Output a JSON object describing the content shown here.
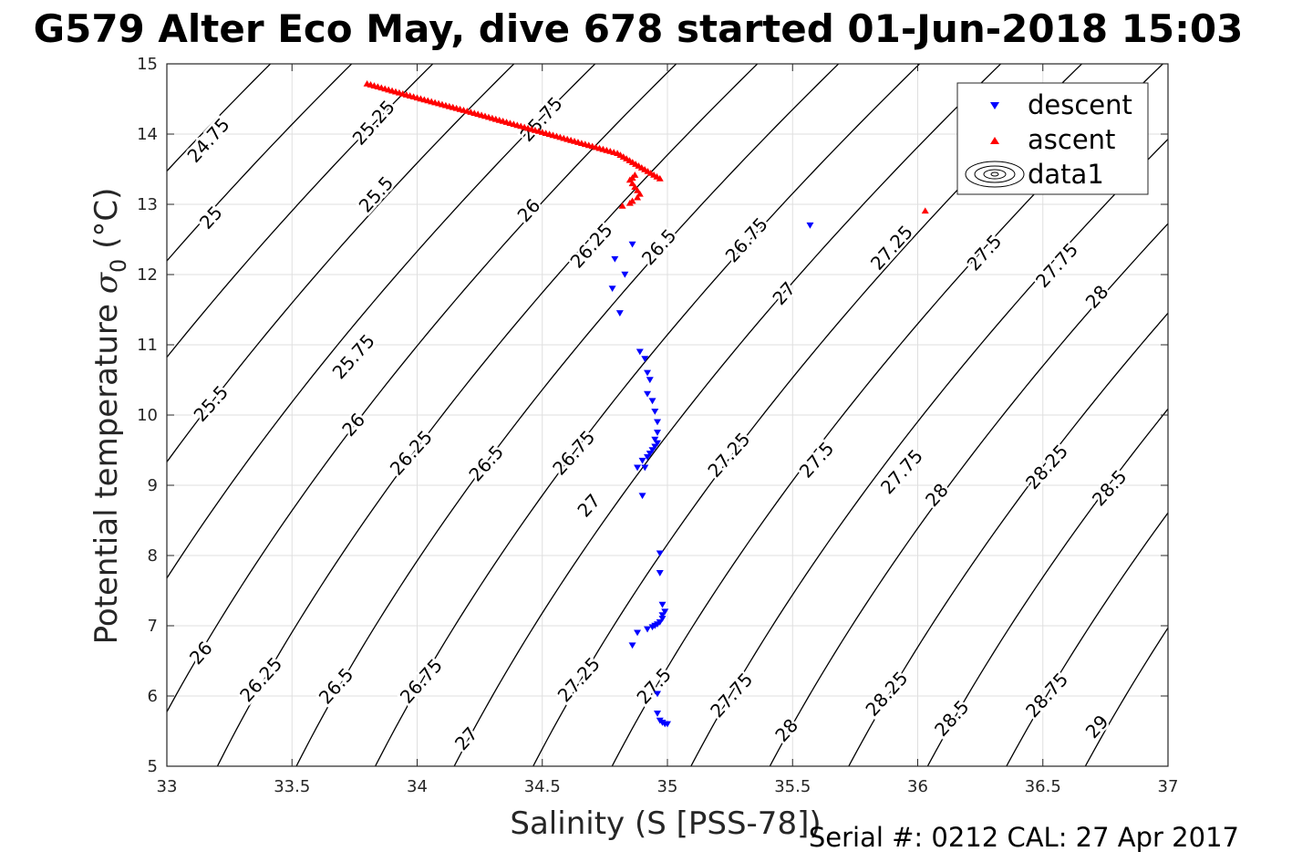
{
  "chart_data": {
    "type": "scatter",
    "title": "G579 Alter Eco May, dive 678 started 01-Jun-2018 15:03",
    "xlabel": "Salinity (S [PSS-78])",
    "ylabel": "Potential temperature σ 0 (°C)",
    "ylabel_main": "Potential temperature ",
    "ylabel_symbol": "σ",
    "ylabel_sub": "0",
    "ylabel_unit": " (°C)",
    "xlim": [
      33,
      37
    ],
    "ylim": [
      5,
      15
    ],
    "x_ticks": [
      "33",
      "33.5",
      "34",
      "34.5",
      "35",
      "35.5",
      "36",
      "36.5",
      "37"
    ],
    "y_ticks": [
      "5",
      "6",
      "7",
      "8",
      "9",
      "10",
      "11",
      "12",
      "13",
      "14",
      "15"
    ],
    "grid": true,
    "legend_position": "top-right",
    "legend": [
      {
        "label": "descent",
        "marker": "triangle-down",
        "color": "#0000ff"
      },
      {
        "label": "ascent",
        "marker": "triangle-up",
        "color": "#ff0000"
      },
      {
        "label": "data1",
        "marker": "contour",
        "color": "#000000"
      }
    ],
    "series": [
      {
        "name": "descent",
        "color": "#0000ff",
        "marker": "triangle-down",
        "x": [
          34.86,
          34.83,
          34.79,
          34.78,
          34.81,
          35.57,
          34.89,
          34.91,
          34.92,
          34.93,
          34.92,
          34.94,
          34.95,
          34.96,
          34.96,
          34.95,
          34.96,
          34.95,
          34.94,
          34.93,
          34.92,
          34.9,
          34.91,
          34.88,
          34.9,
          34.97,
          34.97,
          34.98,
          34.99,
          34.98,
          34.98,
          34.97,
          34.96,
          34.95,
          34.94,
          34.92,
          34.88,
          34.86,
          34.96,
          34.96,
          34.97,
          34.98,
          34.99,
          35.0
        ],
        "y": [
          12.43,
          12.0,
          12.22,
          11.8,
          11.45,
          12.7,
          10.9,
          10.8,
          10.6,
          10.5,
          10.3,
          10.2,
          10.05,
          9.9,
          9.75,
          9.65,
          9.6,
          9.55,
          9.5,
          9.45,
          9.4,
          9.35,
          9.25,
          9.25,
          8.85,
          8.03,
          7.75,
          7.3,
          7.2,
          7.15,
          7.1,
          7.05,
          7.02,
          7.0,
          6.98,
          6.95,
          6.9,
          6.72,
          6.03,
          5.75,
          5.65,
          5.62,
          5.6,
          5.6
        ]
      },
      {
        "name": "ascent",
        "color": "#ff0000",
        "marker": "triangle-up",
        "x": [
          33.8,
          34.0,
          34.2,
          34.4,
          34.6,
          34.8,
          34.97,
          34.87,
          34.86,
          34.85,
          34.86,
          34.87,
          34.88,
          34.89,
          34.88,
          34.86,
          34.85,
          34.82,
          36.03
        ],
        "y": [
          14.72,
          14.52,
          14.33,
          14.13,
          13.93,
          13.73,
          13.37,
          13.42,
          13.38,
          13.35,
          13.3,
          13.25,
          13.2,
          13.15,
          13.1,
          13.05,
          13.02,
          12.98,
          12.91
        ]
      }
    ],
    "contours": {
      "levels": [
        "24.75",
        "25",
        "25.25",
        "25.5",
        "25.75",
        "26",
        "26.25",
        "26.5",
        "26.75",
        "27",
        "27.25",
        "27.5",
        "27.75",
        "28",
        "28.25",
        "28.5",
        "28.75",
        "29"
      ],
      "color": "#000000",
      "labels": [
        {
          "text": "24.75",
          "x": 33.17,
          "y": 13.9
        },
        {
          "text": "25",
          "x": 33.18,
          "y": 12.8
        },
        {
          "text": "25.5",
          "x": 33.18,
          "y": 10.15
        },
        {
          "text": "26",
          "x": 33.14,
          "y": 6.6
        },
        {
          "text": "25.25",
          "x": 33.83,
          "y": 14.15
        },
        {
          "text": "25.5",
          "x": 33.84,
          "y": 13.13
        },
        {
          "text": "25.75",
          "x": 33.75,
          "y": 10.82
        },
        {
          "text": "26",
          "x": 33.75,
          "y": 9.85
        },
        {
          "text": "26.25",
          "x": 33.38,
          "y": 6.22
        },
        {
          "text": "25.75",
          "x": 34.5,
          "y": 14.2
        },
        {
          "text": "26",
          "x": 34.45,
          "y": 12.9
        },
        {
          "text": "26.25",
          "x": 34.7,
          "y": 12.4
        },
        {
          "text": "26.5",
          "x": 34.97,
          "y": 12.38
        },
        {
          "text": "26.25",
          "x": 33.98,
          "y": 9.45
        },
        {
          "text": "26.5",
          "x": 34.28,
          "y": 9.3
        },
        {
          "text": "26.75",
          "x": 34.63,
          "y": 9.45
        },
        {
          "text": "26.5",
          "x": 33.68,
          "y": 6.13
        },
        {
          "text": "26.75",
          "x": 34.02,
          "y": 6.2
        },
        {
          "text": "26.75",
          "x": 35.32,
          "y": 12.48
        },
        {
          "text": "27",
          "x": 35.47,
          "y": 11.72
        },
        {
          "text": "27",
          "x": 34.69,
          "y": 8.7
        },
        {
          "text": "27.25",
          "x": 35.25,
          "y": 9.42
        },
        {
          "text": "27.5",
          "x": 35.6,
          "y": 9.35
        },
        {
          "text": "27.75",
          "x": 35.94,
          "y": 9.18
        },
        {
          "text": "28",
          "x": 36.08,
          "y": 8.85
        },
        {
          "text": "27.25",
          "x": 34.65,
          "y": 6.22
        },
        {
          "text": "27.5",
          "x": 34.95,
          "y": 6.13
        },
        {
          "text": "27",
          "x": 34.2,
          "y": 5.38
        },
        {
          "text": "27.75",
          "x": 35.26,
          "y": 6.0
        },
        {
          "text": "28",
          "x": 35.48,
          "y": 5.5
        },
        {
          "text": "28.25",
          "x": 35.88,
          "y": 6.02
        },
        {
          "text": "28.5",
          "x": 36.14,
          "y": 5.67
        },
        {
          "text": "28.75",
          "x": 36.52,
          "y": 6.0
        },
        {
          "text": "29",
          "x": 36.72,
          "y": 5.55
        },
        {
          "text": "27.25",
          "x": 35.9,
          "y": 12.37
        },
        {
          "text": "27.5",
          "x": 36.27,
          "y": 12.3
        },
        {
          "text": "27.75",
          "x": 36.56,
          "y": 12.12
        },
        {
          "text": "28",
          "x": 36.72,
          "y": 11.67
        },
        {
          "text": "28.25",
          "x": 36.52,
          "y": 9.25
        },
        {
          "text": "28.5",
          "x": 36.77,
          "y": 8.95
        }
      ]
    }
  },
  "footer": {
    "serial_text": "Serial #: 0212  CAL: 27 Apr 2017"
  }
}
